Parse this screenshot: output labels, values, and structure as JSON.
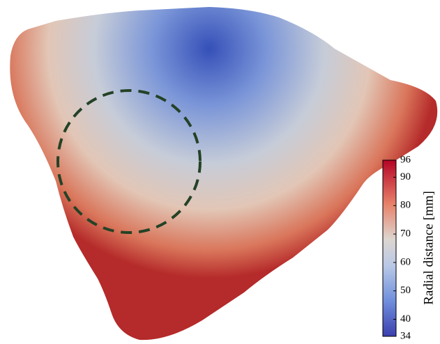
{
  "colorbar": {
    "label": "Radial distance [mm]",
    "range": [
      34,
      96
    ],
    "ticks": [
      34,
      40,
      50,
      60,
      70,
      80,
      90,
      96
    ]
  }
}
